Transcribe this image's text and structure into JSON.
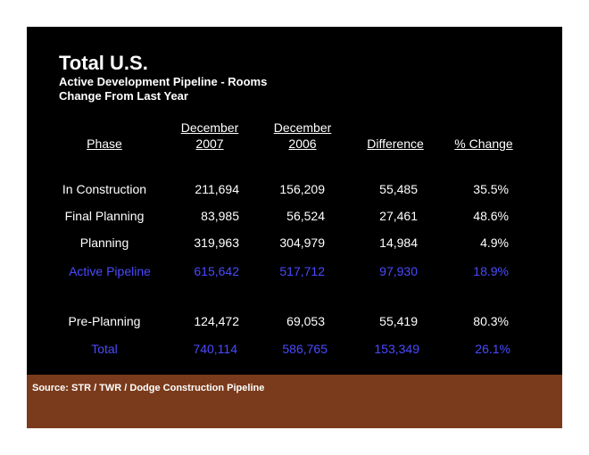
{
  "title": "Total U.S.",
  "subtitle1": "Active Development Pipeline - Rooms",
  "subtitle2": "Change From Last Year",
  "headers": {
    "phase": "Phase",
    "dec2007_line1": "December",
    "dec2007_line2": "2007",
    "dec2006_line1": "December",
    "dec2006_line2": "2006",
    "difference": "Difference",
    "pct_change": "% Change"
  },
  "rows": [
    {
      "phase": "In Construction",
      "dec2007": "211,694",
      "dec2006": "156,209",
      "difference": "55,485",
      "pct": "35.5%"
    },
    {
      "phase": "Final Planning",
      "dec2007": "83,985",
      "dec2006": "56,524",
      "difference": "27,461",
      "pct": "48.6%"
    },
    {
      "phase": "Planning",
      "dec2007": "319,963",
      "dec2006": "304,979",
      "difference": "14,984",
      "pct": "4.9%"
    },
    {
      "phase": "Active Pipeline",
      "dec2007": "615,642",
      "dec2006": "517,712",
      "difference": "97,930",
      "pct": "18.9%"
    },
    {
      "phase": "Pre-Planning",
      "dec2007": "124,472",
      "dec2006": "69,053",
      "difference": "55,419",
      "pct": "80.3%"
    },
    {
      "phase": "Total",
      "dec2007": "740,114",
      "dec2006": "586,765",
      "difference": "153,349",
      "pct": "26.1%"
    }
  ],
  "source": "Source: STR / TWR / Dodge Construction Pipeline",
  "colors": {
    "background": "#000000",
    "text": "#ffffff",
    "highlight": "#4a4aff",
    "footer": "#7a3b1c"
  }
}
